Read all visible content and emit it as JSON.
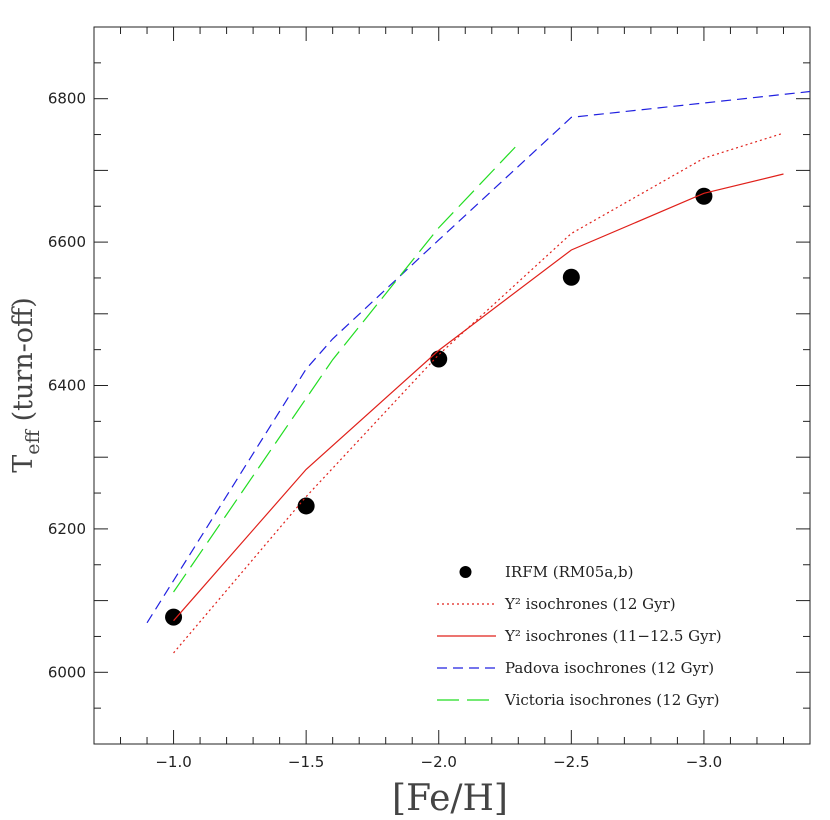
{
  "chart_data": {
    "type": "line",
    "title": "",
    "xlabel": "[Fe/H]",
    "ylabel": "T_eff (turn-off)",
    "ylabel_main": "T",
    "ylabel_sub": "eff",
    "ylabel_rest": " (turn-off)",
    "xlim": [
      -0.7,
      -3.4
    ],
    "ylim": [
      5900,
      6900
    ],
    "xticks": [
      -1.0,
      -1.5,
      -2.0,
      -2.5,
      -3.0
    ],
    "xtick_labels": [
      "−1.0",
      "−1.5",
      "−2.0",
      "−2.5",
      "−3.0"
    ],
    "yticks": [
      6000,
      6200,
      6400,
      6600,
      6800
    ],
    "ytick_labels": [
      "6000",
      "6200",
      "6400",
      "6600",
      "6800"
    ],
    "grid": false,
    "legend_position": "bottom-right",
    "series": [
      {
        "name": "IRFM (RM05a,b)",
        "style": "markers",
        "color": "#000000",
        "x": [
          -1.0,
          -1.5,
          -2.0,
          -2.5,
          -3.0
        ],
        "y": [
          6077,
          6232,
          6437,
          6551,
          6664
        ]
      },
      {
        "name": "Y² isochrones (12 Gyr)",
        "style": "dotted",
        "color": "#e0201a",
        "x": [
          -1.0,
          -1.5,
          -2.0,
          -2.5,
          -3.0,
          -3.3
        ],
        "y": [
          6027,
          6245,
          6443,
          6612,
          6717,
          6752
        ]
      },
      {
        "name": "Y² isochrones (11−12.5 Gyr)",
        "style": "solid",
        "color": "#e0201a",
        "x": [
          -1.0,
          -1.5,
          -2.0,
          -2.5,
          -3.0,
          -3.3
        ],
        "y": [
          6072,
          6283,
          6449,
          6589,
          6668,
          6695
        ]
      },
      {
        "name": "Padova isochrones (12 Gyr)",
        "style": "dashed",
        "color": "#2020e0",
        "x": [
          -0.9,
          -1.5,
          -1.6,
          -2.0,
          -2.5,
          -3.4
        ],
        "y": [
          6069,
          6423,
          6465,
          6603,
          6774,
          6810
        ]
      },
      {
        "name": "Victoria isochrones (12 Gyr)",
        "style": "longdash",
        "color": "#22dd22",
        "x": [
          -1.0,
          -1.6,
          -2.0,
          -2.3
        ],
        "y": [
          6112,
          6436,
          6620,
          6737
        ]
      }
    ]
  }
}
